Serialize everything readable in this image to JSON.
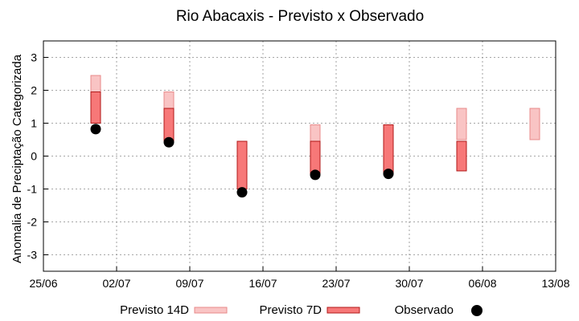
{
  "chart_data": {
    "type": "range-bar",
    "title": "Rio Abacaxis - Previsto x Observado",
    "ylabel": "Anomalia de Preciptação Categorizada",
    "xlabel": "",
    "ylim": [
      -3.5,
      3.5
    ],
    "yticks": [
      -3,
      -2,
      -1,
      0,
      1,
      2,
      3
    ],
    "xlim": [
      "2025-06-25",
      "2025-08-13"
    ],
    "xtick_labels": [
      "25/06",
      "02/07",
      "09/07",
      "16/07",
      "23/07",
      "30/07",
      "06/08",
      "13/08"
    ],
    "grid": true,
    "legend_position": "bottom",
    "colors": {
      "previsto_14d_fill": "#f9c4c4",
      "previsto_14d_edge": "#e88a8a",
      "previsto_7d_fill": "#f77878",
      "previsto_7d_edge": "#b01818",
      "observado": "#000000"
    },
    "series": [
      {
        "name": "Previsto 14D",
        "kind": "range",
        "dates": [
          "2025-06-30",
          "2025-07-07",
          "2025-07-14",
          "2025-07-21",
          "2025-08-04",
          "2025-08-11"
        ],
        "low": [
          1.0,
          1.0,
          -1.0,
          0.0,
          0.5,
          0.5
        ],
        "high": [
          2.45,
          1.95,
          -0.5,
          0.95,
          1.45,
          1.45
        ]
      },
      {
        "name": "Previsto 7D",
        "kind": "range",
        "dates": [
          "2025-06-30",
          "2025-07-07",
          "2025-07-14",
          "2025-07-21",
          "2025-07-28",
          "2025-08-04"
        ],
        "low": [
          1.0,
          0.45,
          -1.0,
          -0.55,
          -0.55,
          -0.45
        ],
        "high": [
          1.95,
          1.45,
          0.45,
          0.45,
          0.95,
          0.45
        ]
      },
      {
        "name": "Observado",
        "kind": "points",
        "dates": [
          "2025-06-30",
          "2025-07-07",
          "2025-07-14",
          "2025-07-21",
          "2025-07-28"
        ],
        "values": [
          0.82,
          0.42,
          -1.1,
          -0.57,
          -0.54
        ]
      }
    ]
  }
}
